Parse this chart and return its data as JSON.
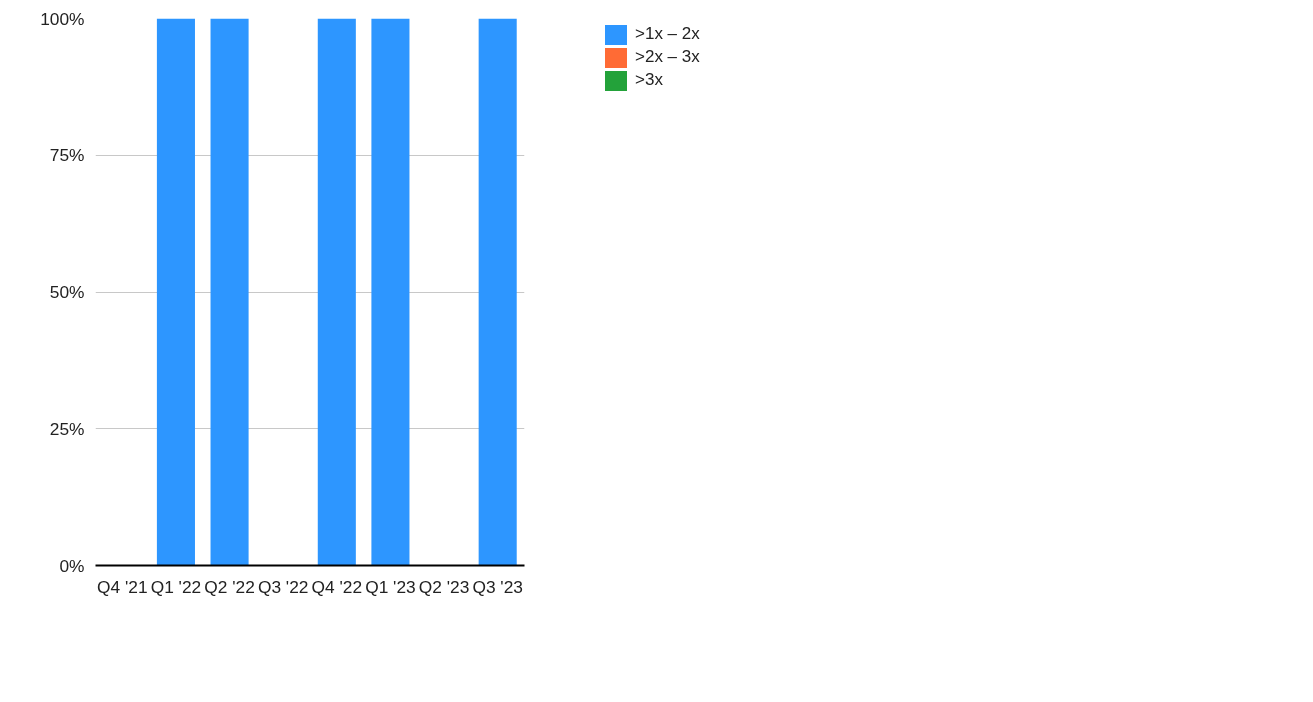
{
  "chart_data": {
    "type": "bar",
    "stacked": true,
    "categories": [
      "Q4 '21",
      "Q1 '22",
      "Q2 '22",
      "Q3 '22",
      "Q4 '22",
      "Q1 '23",
      "Q2 '23",
      "Q3 '23"
    ],
    "series": [
      {
        "name": ">1x – 2x",
        "color": "#2d96ff",
        "values": [
          0,
          100,
          100,
          0,
          100,
          100,
          0,
          100
        ]
      },
      {
        "name": ">2x – 3x",
        "color": "#ff6b35",
        "values": [
          0,
          0,
          0,
          0,
          0,
          0,
          0,
          0
        ]
      },
      {
        "name": ">3x",
        "color": "#23a23a",
        "values": [
          0,
          0,
          0,
          0,
          0,
          0,
          0,
          0
        ]
      }
    ],
    "ylim": [
      0,
      100
    ],
    "yticks": [
      {
        "value": 0,
        "label": "0%"
      },
      {
        "value": 25,
        "label": "25%"
      },
      {
        "value": 50,
        "label": "50%"
      },
      {
        "value": 75,
        "label": "75%"
      },
      {
        "value": 100,
        "label": "100%"
      }
    ],
    "grid": "y",
    "legend": "top right"
  }
}
